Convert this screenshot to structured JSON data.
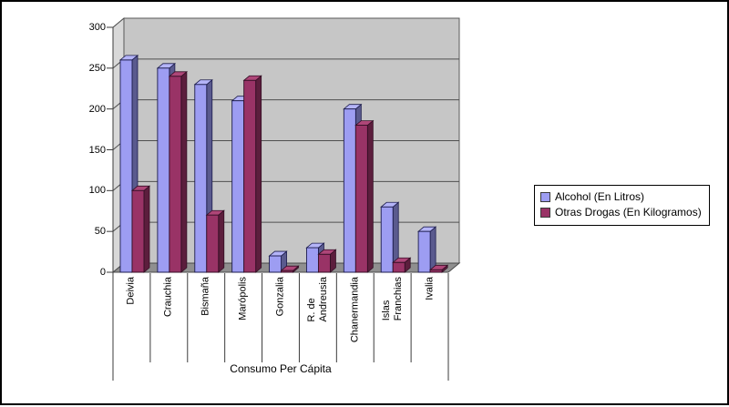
{
  "chart_data": {
    "type": "bar",
    "projection": "3d",
    "title": "",
    "xlabel": "Consumo Per Cápita",
    "ylabel": "",
    "ylim": [
      0,
      300
    ],
    "ytick_step": 50,
    "yticks": [
      0,
      50,
      100,
      150,
      200,
      250,
      300
    ],
    "grid": true,
    "legend_position": "right",
    "categories": [
      "Deivia",
      "Crauchia",
      "Bismaña",
      "Marópolis",
      "Gonzalia",
      "R. de Andreusia",
      "Chanermandia",
      "Islas Franchias",
      "Ivalia"
    ],
    "category_display_lines": [
      [
        "Deivia"
      ],
      [
        "Crauchia"
      ],
      [
        "Bismaña"
      ],
      [
        "Marópolis"
      ],
      [
        "Gonzalia"
      ],
      [
        "R. de",
        "Andreusia"
      ],
      [
        "Chanermandia"
      ],
      [
        "Islas",
        "Franchias"
      ],
      [
        "Ivalia"
      ]
    ],
    "series": [
      {
        "name": "Alcohol (En Litros)",
        "values": [
          260,
          250,
          230,
          210,
          20,
          30,
          200,
          80,
          50
        ],
        "color": "#9D9DF2",
        "color_top": "#B4B4F8",
        "color_side": "#5A5A8E",
        "color_outline": "#1C1C4D"
      },
      {
        "name": "Otras Drogas (En Kilogramos)",
        "values": [
          100,
          240,
          70,
          235,
          2,
          22,
          180,
          12,
          3
        ],
        "color": "#993366",
        "color_top": "#AE4678",
        "color_side": "#5C1E3D",
        "color_outline": "#330E24"
      }
    ],
    "colors": {
      "wall": "#C6C6C6",
      "left_wall": "#D8D8D8",
      "floor": "#8F8F8F",
      "gridline": "#4F4F4F",
      "axis": "#3B3B3B",
      "wall_outline": "#595959",
      "floor_outline": "#4A4A4A"
    }
  }
}
